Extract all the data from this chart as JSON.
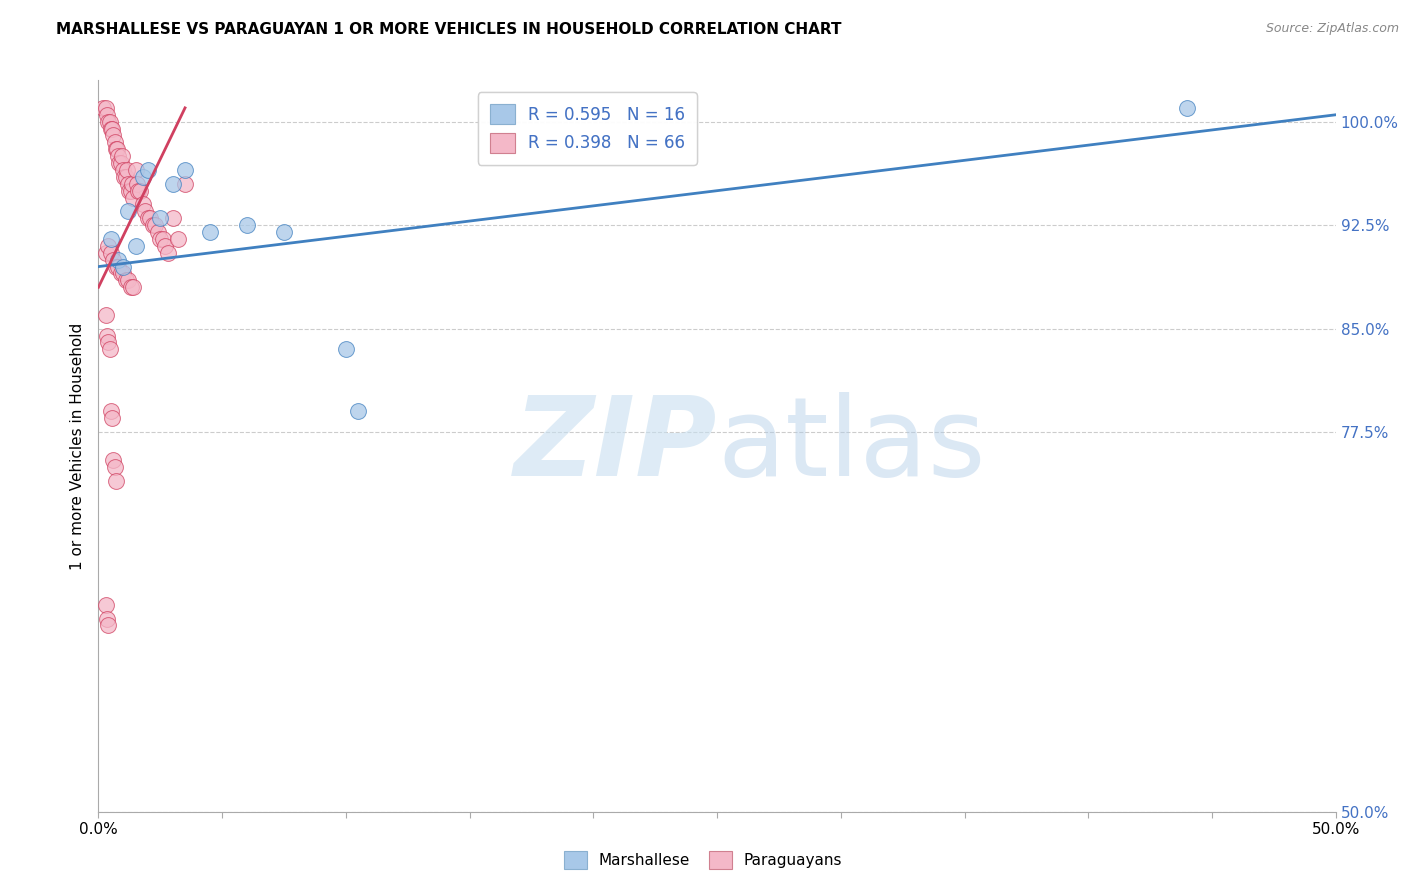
{
  "title": "MARSHALLESE VS PARAGUAYAN 1 OR MORE VEHICLES IN HOUSEHOLD CORRELATION CHART",
  "source": "Source: ZipAtlas.com",
  "ylabel": "1 or more Vehicles in Household",
  "xlim": [
    0.0,
    50.0
  ],
  "ylim": [
    50.0,
    103.0
  ],
  "yticks": [
    50.0,
    77.5,
    85.0,
    92.5,
    100.0
  ],
  "ytick_labels": [
    "50.0%",
    "77.5%",
    "85.0%",
    "92.5%",
    "100.0%"
  ],
  "legend_r1": "R = 0.595",
  "legend_n1": "N = 16",
  "legend_r2": "R = 0.398",
  "legend_n2": "N = 66",
  "blue_color": "#a8c8e8",
  "pink_color": "#f4b8c8",
  "line_blue": "#4080c0",
  "line_pink": "#d04060",
  "marshallese_x": [
    0.5,
    0.8,
    1.0,
    1.2,
    1.5,
    1.8,
    2.0,
    2.5,
    3.0,
    3.5,
    4.5,
    6.0,
    7.5,
    10.0,
    10.5,
    44.0
  ],
  "marshallese_y": [
    91.5,
    90.0,
    89.5,
    93.5,
    91.0,
    96.0,
    96.5,
    93.0,
    95.5,
    96.5,
    92.0,
    92.5,
    92.0,
    83.5,
    79.0,
    101.0
  ],
  "paraguayan_x": [
    0.2,
    0.3,
    0.35,
    0.4,
    0.45,
    0.5,
    0.55,
    0.6,
    0.65,
    0.7,
    0.75,
    0.8,
    0.85,
    0.9,
    0.95,
    1.0,
    1.05,
    1.1,
    1.15,
    1.2,
    1.25,
    1.3,
    1.35,
    1.4,
    1.5,
    1.55,
    1.6,
    1.7,
    1.8,
    1.9,
    2.0,
    2.1,
    2.2,
    2.3,
    2.4,
    2.5,
    2.6,
    2.7,
    2.8,
    3.0,
    3.2,
    3.5,
    0.3,
    0.4,
    0.5,
    0.6,
    0.7,
    0.8,
    0.9,
    1.0,
    1.1,
    1.2,
    1.3,
    1.4,
    0.3,
    0.35,
    0.4,
    0.45,
    0.5,
    0.55,
    0.6,
    0.65,
    0.7,
    0.3,
    0.35,
    0.4
  ],
  "paraguayan_y": [
    101.0,
    101.0,
    100.5,
    100.0,
    100.0,
    99.5,
    99.5,
    99.0,
    98.5,
    98.0,
    98.0,
    97.5,
    97.0,
    97.0,
    97.5,
    96.5,
    96.0,
    96.0,
    96.5,
    95.5,
    95.0,
    95.0,
    95.5,
    94.5,
    96.5,
    95.5,
    95.0,
    95.0,
    94.0,
    93.5,
    93.0,
    93.0,
    92.5,
    92.5,
    92.0,
    91.5,
    91.5,
    91.0,
    90.5,
    93.0,
    91.5,
    95.5,
    90.5,
    91.0,
    90.5,
    90.0,
    89.5,
    89.5,
    89.0,
    89.0,
    88.5,
    88.5,
    88.0,
    88.0,
    86.0,
    84.5,
    84.0,
    83.5,
    79.0,
    78.5,
    75.5,
    75.0,
    74.0,
    65.0,
    64.0,
    63.5
  ],
  "blue_line_x": [
    0.0,
    50.0
  ],
  "blue_line_y": [
    89.5,
    100.5
  ],
  "pink_line_x": [
    0.0,
    3.5
  ],
  "pink_line_y": [
    88.0,
    101.0
  ]
}
